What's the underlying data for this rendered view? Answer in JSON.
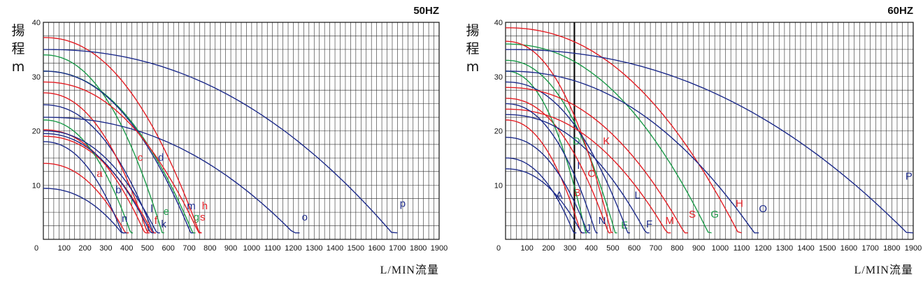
{
  "colors": {
    "red": "#e31e24",
    "green": "#1a9a48",
    "blue": "#1d2b8a",
    "grid": "#2a2a2a"
  },
  "chart_data": [
    {
      "type": "line",
      "title": "50HZ",
      "ylabel": [
        "揚",
        "程",
        "m"
      ],
      "xlabel": "L/MIN流量",
      "xlim": [
        0,
        1900
      ],
      "ylim": [
        0,
        40
      ],
      "x_ticks": [
        0,
        100,
        200,
        300,
        400,
        500,
        600,
        700,
        800,
        900,
        1000,
        1100,
        1200,
        1300,
        1400,
        1500,
        1600,
        1700,
        1800,
        1900
      ],
      "y_ticks": [
        10,
        20,
        30,
        40
      ],
      "series": [
        {
          "name": "a",
          "color": "red",
          "h0": 14,
          "qmax": 410,
          "label_at": [
            270,
            11.5
          ]
        },
        {
          "name": "b",
          "color": "blue",
          "h0": 18,
          "qmax": 390,
          "label_at": [
            360,
            8.5
          ]
        },
        {
          "name": "c",
          "color": "red",
          "h0": 20.2,
          "qmax": 500,
          "label_at": [
            465,
            14.5
          ]
        },
        {
          "name": "d",
          "color": "blue",
          "h0": 24.8,
          "qmax": 540,
          "label_at": [
            565,
            14.5
          ]
        },
        {
          "name": "e",
          "color": "green",
          "h0": 34,
          "qmax": 580,
          "label_at": [
            590,
            4.5
          ]
        },
        {
          "name": "f",
          "color": "red",
          "h0": 19,
          "qmax": 540,
          "label_at": [
            540,
            2.8
          ]
        },
        {
          "name": "g",
          "color": "green",
          "h0": 31,
          "qmax": 730,
          "label_at": [
            735,
            3.5
          ]
        },
        {
          "name": "h",
          "color": "red",
          "h0": 37.2,
          "qmax": 760,
          "label_at": [
            775,
            5.5
          ]
        },
        {
          "name": "i",
          "color": "green",
          "h0": 22,
          "qmax": 430,
          "label_at": [
            425,
            6.5
          ]
        },
        {
          "name": "j",
          "color": "red",
          "h0": 27,
          "qmax": 510,
          "label_at": [
            505,
            1.8
          ]
        },
        {
          "name": "k",
          "color": "blue",
          "h0": 20,
          "qmax": 560,
          "label_at": [
            578,
            2.2
          ]
        },
        {
          "name": "l",
          "color": "blue",
          "h0": 19.5,
          "qmax": 530,
          "label_at": [
            520,
            5
          ]
        },
        {
          "name": "m",
          "color": "blue",
          "h0": 31,
          "qmax": 720,
          "label_at": [
            710,
            5.5
          ]
        },
        {
          "name": "n",
          "color": "blue",
          "h0": 9.4,
          "qmax": 400,
          "label_at": [
            390,
            3.2
          ]
        },
        {
          "name": "o",
          "color": "blue",
          "h0": 22.5,
          "qmax": 1230,
          "label_at": [
            1255,
            3.5
          ]
        },
        {
          "name": "p",
          "color": "blue",
          "h0": 35,
          "qmax": 1700,
          "label_at": [
            1725,
            6
          ]
        },
        {
          "name": "s",
          "color": "red",
          "h0": 29,
          "qmax": 760,
          "label_at": [
            765,
            3.5
          ]
        }
      ]
    },
    {
      "type": "line",
      "title": "60HZ",
      "ylabel": [
        "揚",
        "程",
        "m"
      ],
      "xlabel": "L/MIN流量",
      "xlim": [
        0,
        1900
      ],
      "ylim": [
        0,
        40
      ],
      "x_ticks": [
        0,
        100,
        200,
        300,
        400,
        500,
        600,
        700,
        800,
        900,
        1000,
        1100,
        1200,
        1300,
        1400,
        1500,
        1600,
        1700,
        1800,
        1900
      ],
      "y_ticks": [
        10,
        20,
        30,
        40
      ],
      "marker_line_x": 320,
      "series": [
        {
          "name": "A",
          "color": "blue",
          "h0": 15,
          "qmax": 330,
          "label_at": [
            250,
            7.5
          ]
        },
        {
          "name": "B",
          "color": "red",
          "h0": 22,
          "qmax": 360,
          "label_at": [
            335,
            8
          ]
        },
        {
          "name": "C",
          "color": "red",
          "h0": 26,
          "qmax": 490,
          "label_at": [
            400,
            11.5
          ]
        },
        {
          "name": "D",
          "color": "green",
          "h0": 31,
          "qmax": 380,
          "label_at": [
            330,
            17.5
          ]
        },
        {
          "name": "E",
          "color": "green",
          "h0": 33,
          "qmax": 520,
          "label_at": [
            555,
            2
          ]
        },
        {
          "name": "F",
          "color": "blue",
          "h0": 23,
          "qmax": 670,
          "label_at": [
            670,
            2.2
          ]
        },
        {
          "name": "G",
          "color": "green",
          "h0": 36,
          "qmax": 960,
          "label_at": [
            975,
            4
          ]
        },
        {
          "name": "H",
          "color": "red",
          "h0": 39,
          "qmax": 1100,
          "label_at": [
            1090,
            6
          ]
        },
        {
          "name": "I",
          "color": "blue",
          "h0": 18.8,
          "qmax": 395,
          "label_at": [
            340,
            13
          ]
        },
        {
          "name": "J",
          "color": "blue",
          "h0": 13,
          "qmax": 370,
          "label_at": [
            385,
            1.5
          ]
        },
        {
          "name": "K",
          "color": "red",
          "h0": 36.5,
          "qmax": 500,
          "label_at": [
            470,
            17.5
          ]
        },
        {
          "name": "L",
          "color": "blue",
          "h0": 29,
          "qmax": 580,
          "label_at": [
            615,
            7.5
          ]
        },
        {
          "name": "M",
          "color": "red",
          "h0": 24,
          "qmax": 770,
          "label_at": [
            765,
            2.8
          ]
        },
        {
          "name": "N",
          "color": "blue",
          "h0": 25,
          "qmax": 430,
          "label_at": [
            450,
            2.8
          ]
        },
        {
          "name": "O",
          "color": "blue",
          "h0": 31,
          "qmax": 1180,
          "label_at": [
            1200,
            5
          ]
        },
        {
          "name": "P",
          "color": "blue",
          "h0": 35,
          "qmax": 1900,
          "label_at": [
            1880,
            11
          ]
        },
        {
          "name": "S",
          "color": "red",
          "h0": 28,
          "qmax": 850,
          "label_at": [
            870,
            4
          ]
        }
      ]
    }
  ]
}
